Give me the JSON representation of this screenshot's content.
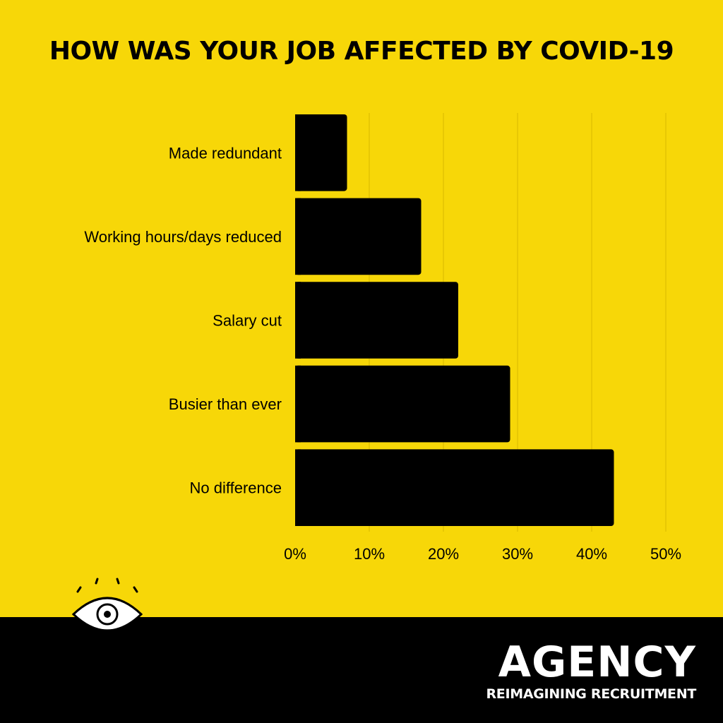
{
  "chart_data": {
    "type": "bar",
    "orientation": "horizontal",
    "title": "HOW WAS YOUR JOB AFFECTED BY COVID-19",
    "categories": [
      "Made redundant",
      "Working hours/days reduced",
      "Salary cut",
      "Busier than ever",
      "No difference"
    ],
    "values": [
      7,
      17,
      22,
      29,
      43
    ],
    "unit": "%",
    "xlim": [
      0,
      50
    ],
    "ticks": [
      "0%",
      "10%",
      "20%",
      "30%",
      "40%",
      "50%"
    ],
    "xlabel": "",
    "ylabel": "",
    "grid": "vertical",
    "bar_color": "#000000",
    "background": "#F7D708"
  },
  "brand": {
    "name": "AGENCY",
    "tagline": "REIMAGINING RECRUITMENT",
    "logo_icon": "eye-icon"
  },
  "colors": {
    "background": "#F7D708",
    "footer": "#000000",
    "text": "#000000",
    "brand_text": "#FFFFFF"
  }
}
